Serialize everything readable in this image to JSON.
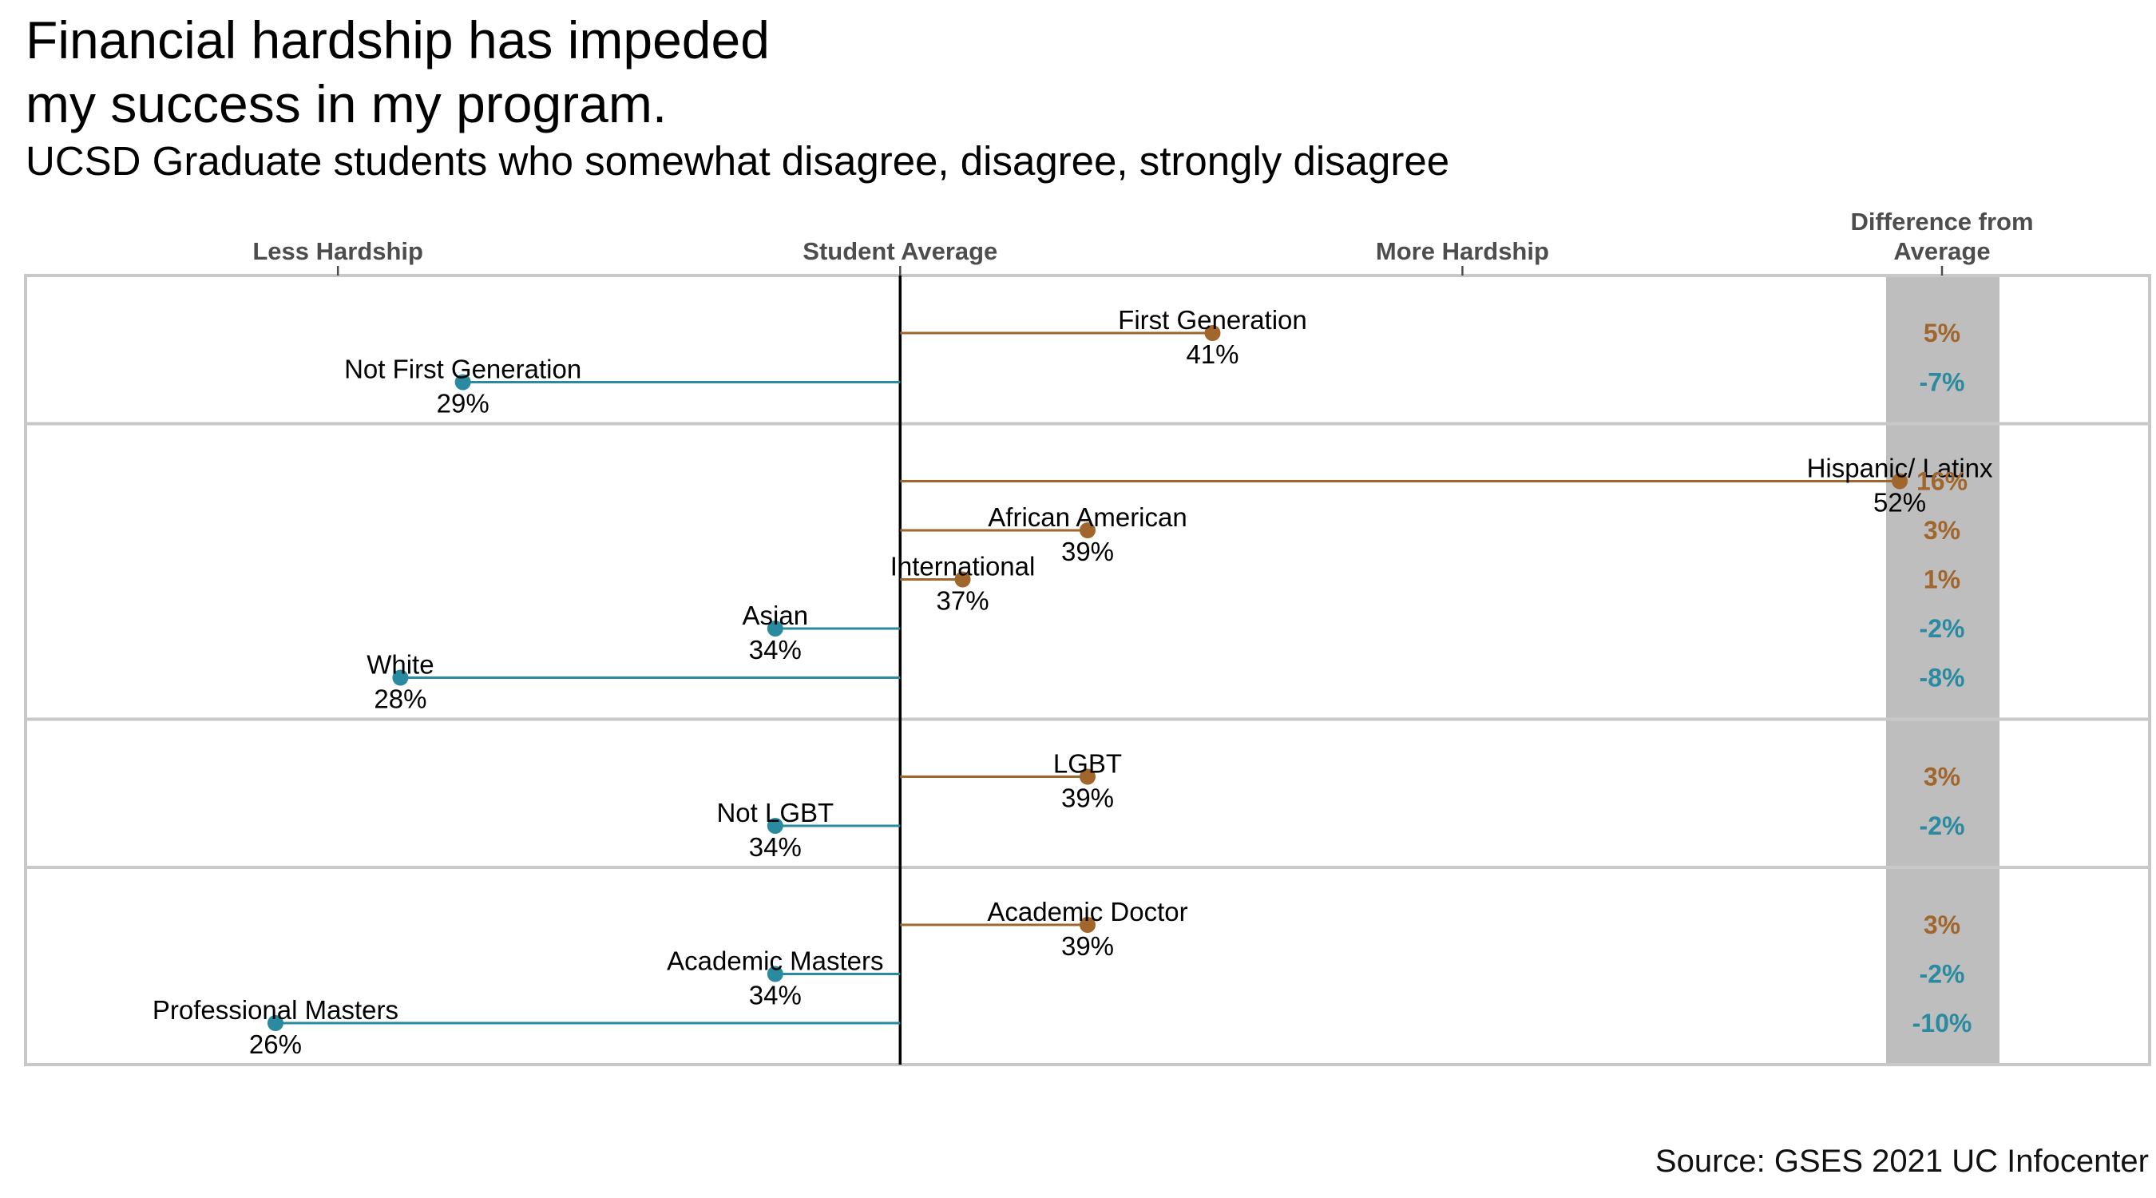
{
  "title": "Financial hardship has impeded\nmy success in my program.",
  "subtitle": "UCSD Graduate students who somewhat disagree, disagree, strongly disagree",
  "source": "Source: GSES 2021 UC Infocenter",
  "colors": {
    "above": "#a0662c",
    "below": "#2a8aa0",
    "center_line": "#000000",
    "panel_border": "#c8c8c8",
    "diff_column": "#bebebe"
  },
  "chart_data": {
    "type": "lollipop",
    "average": 36,
    "xlim": [
      22,
      56
    ],
    "x_axis_labels": [
      {
        "label": "Less Hardship",
        "value": 27
      },
      {
        "label": "Student Average",
        "value": 36
      },
      {
        "label": "More Hardship",
        "value": 45
      }
    ],
    "diff_header": "Difference from\nAverage",
    "groups": [
      {
        "items": [
          {
            "label": "First Generation",
            "value": 41,
            "value_label": "41%",
            "diff_label": "5%"
          },
          {
            "label": "Not First Generation",
            "value": 29,
            "value_label": "29%",
            "diff_label": "-7%"
          }
        ]
      },
      {
        "items": [
          {
            "label": "Hispanic/ Latinx",
            "value": 52,
            "value_label": "52%",
            "diff_label": "16%"
          },
          {
            "label": "African American",
            "value": 39,
            "value_label": "39%",
            "diff_label": "3%"
          },
          {
            "label": "International",
            "value": 37,
            "value_label": "37%",
            "diff_label": "1%"
          },
          {
            "label": "Asian",
            "value": 34,
            "value_label": "34%",
            "diff_label": "-2%"
          },
          {
            "label": "White",
            "value": 28,
            "value_label": "28%",
            "diff_label": "-8%"
          }
        ]
      },
      {
        "items": [
          {
            "label": "LGBT",
            "value": 39,
            "value_label": "39%",
            "diff_label": "3%"
          },
          {
            "label": "Not LGBT",
            "value": 34,
            "value_label": "34%",
            "diff_label": "-2%"
          }
        ]
      },
      {
        "items": [
          {
            "label": "Academic Doctor",
            "value": 39,
            "value_label": "39%",
            "diff_label": "3%"
          },
          {
            "label": "Academic Masters",
            "value": 34,
            "value_label": "34%",
            "diff_label": "-2%"
          },
          {
            "label": "Professional Masters",
            "value": 26,
            "value_label": "26%",
            "diff_label": "-10%"
          }
        ]
      }
    ]
  }
}
